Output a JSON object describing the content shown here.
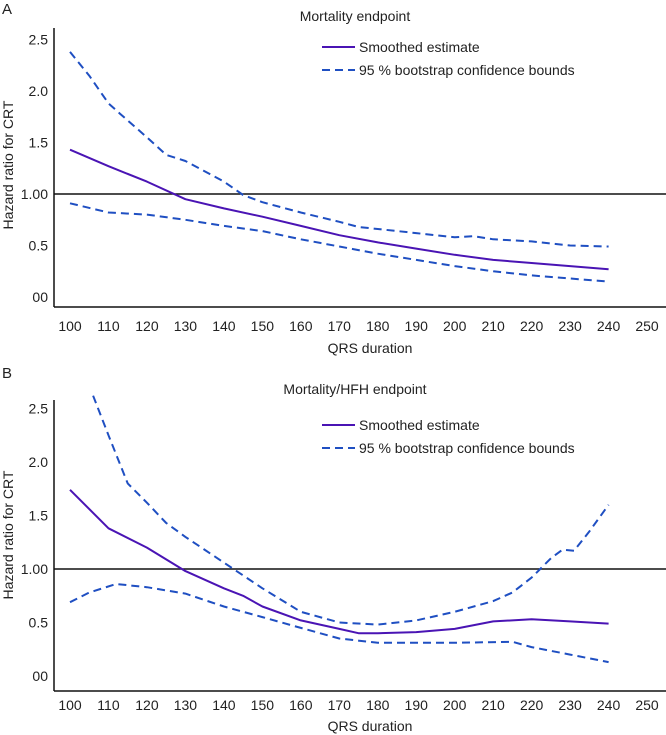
{
  "colors": {
    "smoothed": "#4a14b4",
    "bounds": "#1f4fc2",
    "axis": "#111111",
    "reference": "#111111"
  },
  "chart_data": [
    {
      "type": "line",
      "panel_label": "A",
      "title": "Mortality endpoint",
      "xlabel": "QRS duration",
      "ylabel": "Hazard ratio for CRT",
      "xticks": [
        "100",
        "110",
        "120",
        "130",
        "140",
        "150",
        "160",
        "170",
        "180",
        "190",
        "200",
        "210",
        "220",
        "230",
        "240",
        "250"
      ],
      "yticks": [
        {
          "value": 0,
          "label": "00"
        },
        {
          "value": 0.5,
          "label": "0.5"
        },
        {
          "value": 1.0,
          "label": "1.00"
        },
        {
          "value": 1.5,
          "label": "1.5"
        },
        {
          "value": 2.0,
          "label": "2.0"
        },
        {
          "value": 2.5,
          "label": "2.5"
        }
      ],
      "xlim": [
        96,
        254
      ],
      "ylim": [
        -0.1,
        2.62
      ],
      "reference_line": 1.0,
      "legend": {
        "placement": "top-right",
        "entries": [
          "Smoothed estimate",
          "95 % bootstrap confidence bounds"
        ]
      },
      "series": [
        {
          "name": "Smoothed estimate",
          "style": "solid",
          "x": [
            100,
            110,
            120,
            130,
            140,
            150,
            160,
            170,
            180,
            190,
            200,
            210,
            220,
            230,
            240
          ],
          "y": [
            1.43,
            1.27,
            1.12,
            0.95,
            0.86,
            0.78,
            0.69,
            0.6,
            0.53,
            0.47,
            0.41,
            0.36,
            0.33,
            0.3,
            0.27
          ]
        },
        {
          "name": "Upper 95 % bound",
          "style": "dashed",
          "x": [
            100,
            105,
            110,
            113,
            120,
            125,
            130,
            140,
            145,
            150,
            160,
            170,
            175,
            180,
            190,
            200,
            205,
            210,
            220,
            230,
            240
          ],
          "y": [
            2.38,
            2.15,
            1.88,
            1.78,
            1.55,
            1.38,
            1.32,
            1.12,
            0.99,
            0.92,
            0.82,
            0.73,
            0.68,
            0.66,
            0.62,
            0.58,
            0.59,
            0.56,
            0.54,
            0.5,
            0.49
          ]
        },
        {
          "name": "Lower 95 % bound",
          "style": "dashed",
          "x": [
            100,
            110,
            120,
            130,
            140,
            150,
            160,
            170,
            180,
            190,
            200,
            210,
            220,
            230,
            240
          ],
          "y": [
            0.91,
            0.82,
            0.8,
            0.75,
            0.69,
            0.64,
            0.56,
            0.49,
            0.42,
            0.36,
            0.3,
            0.25,
            0.21,
            0.18,
            0.15
          ]
        }
      ]
    },
    {
      "type": "line",
      "panel_label": "B",
      "title": "Mortality/HFH endpoint",
      "xlabel": "QRS duration",
      "ylabel": "Hazard ratio for CRT",
      "xticks": [
        "100",
        "110",
        "120",
        "130",
        "140",
        "150",
        "160",
        "170",
        "180",
        "190",
        "200",
        "210",
        "220",
        "230",
        "240",
        "250"
      ],
      "yticks": [
        {
          "value": 0,
          "label": "00"
        },
        {
          "value": 0.5,
          "label": "0.5"
        },
        {
          "value": 1.0,
          "label": "1.00"
        },
        {
          "value": 1.5,
          "label": "1.5"
        },
        {
          "value": 2.0,
          "label": "2.0"
        },
        {
          "value": 2.5,
          "label": "2.5"
        }
      ],
      "xlim": [
        96,
        254
      ],
      "ylim": [
        -0.14,
        2.62
      ],
      "reference_line": 1.0,
      "legend": {
        "placement": "top-right",
        "entries": [
          "Smoothed estimate",
          "95 % bootstrap confidence bounds"
        ]
      },
      "series": [
        {
          "name": "Smoothed estimate",
          "style": "solid",
          "x": [
            100,
            110,
            120,
            130,
            140,
            145,
            150,
            160,
            170,
            175,
            180,
            190,
            200,
            210,
            220,
            230,
            240
          ],
          "y": [
            1.74,
            1.38,
            1.2,
            0.98,
            0.82,
            0.75,
            0.65,
            0.52,
            0.44,
            0.4,
            0.4,
            0.41,
            0.44,
            0.51,
            0.53,
            0.51,
            0.49
          ]
        },
        {
          "name": "Upper 95 % bound",
          "style": "dashed",
          "x": [
            106,
            110,
            115,
            120,
            125,
            130,
            140,
            150,
            160,
            170,
            180,
            190,
            200,
            210,
            215,
            220,
            225,
            228,
            231,
            235,
            240
          ],
          "y": [
            2.62,
            2.25,
            1.8,
            1.62,
            1.43,
            1.3,
            1.06,
            0.82,
            0.6,
            0.5,
            0.48,
            0.52,
            0.6,
            0.7,
            0.78,
            0.92,
            1.1,
            1.18,
            1.17,
            1.35,
            1.6
          ]
        },
        {
          "name": "Lower 95 % bound",
          "style": "dashed",
          "x": [
            100,
            105,
            112,
            120,
            130,
            140,
            150,
            160,
            170,
            180,
            190,
            200,
            215,
            220,
            230,
            240
          ],
          "y": [
            0.69,
            0.78,
            0.86,
            0.83,
            0.77,
            0.65,
            0.55,
            0.45,
            0.35,
            0.31,
            0.31,
            0.31,
            0.32,
            0.27,
            0.2,
            0.13
          ]
        }
      ]
    }
  ]
}
